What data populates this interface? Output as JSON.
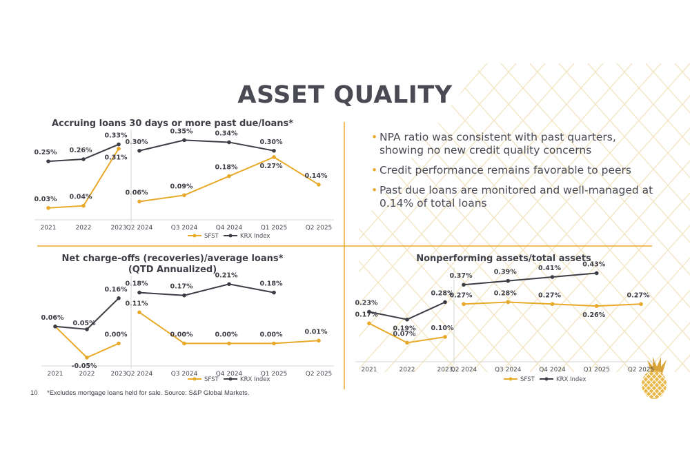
{
  "slide": {
    "title": "ASSET QUALITY",
    "page_number": "10",
    "footnote": "*Excludes mortgage loans held for sale. Source: S&P Global Markets."
  },
  "colors": {
    "sfst": "#e8a929",
    "krx": "#3d3d46",
    "divider": "#e8a929",
    "axis": "#d6d6d6"
  },
  "bullets": [
    "NPA ratio was consistent with past quarters, showing no new credit quality concerns",
    "Credit performance remains favorable to peers",
    "Past due loans are monitored and well-managed at 0.14% of total loans"
  ],
  "legend": {
    "sfst": "SFST",
    "krx": "KRX Index"
  },
  "chart_data": [
    {
      "type": "line",
      "title": "Accruing loans 30 days or more past due/loans*",
      "panels": [
        {
          "categories": [
            "2021",
            "2022",
            "2023"
          ],
          "series": [
            {
              "name": "SFST",
              "values": [
                0.03,
                0.04,
                0.31
              ],
              "labels": [
                "0.03%",
                "0.04%",
                "0.31%"
              ]
            },
            {
              "name": "KRX Index",
              "values": [
                0.25,
                0.26,
                0.33
              ],
              "labels": [
                "0.25%",
                "0.26%",
                "0.33%"
              ]
            }
          ]
        },
        {
          "categories": [
            "Q2 2024",
            "Q3 2024",
            "Q4 2024",
            "Q1 2025",
            "Q2 2025"
          ],
          "series": [
            {
              "name": "SFST",
              "values": [
                0.06,
                0.09,
                0.18,
                0.27,
                0.14
              ],
              "labels": [
                "0.06%",
                "0.09%",
                "0.18%",
                "0.27%",
                "0.14%"
              ]
            },
            {
              "name": "KRX Index",
              "values": [
                0.3,
                0.35,
                0.34,
                0.3
              ],
              "labels": [
                "0.30%",
                "0.35%",
                "0.34%",
                "0.30%"
              ]
            }
          ]
        }
      ],
      "legend": [
        "SFST",
        "KRX Index"
      ]
    },
    {
      "type": "line",
      "title": "Net charge-offs (recoveries)/average loans*",
      "subtitle": "(QTD Annualized)",
      "panels": [
        {
          "categories": [
            "2021",
            "2022",
            "2023"
          ],
          "series": [
            {
              "name": "SFST",
              "values": [
                0.06,
                -0.05,
                0.0
              ],
              "labels": [
                "",
                "-0.05%",
                "0.00%"
              ]
            },
            {
              "name": "KRX Index",
              "values": [
                0.06,
                0.05,
                0.16
              ],
              "labels": [
                "0.06%",
                "0.05%",
                "0.16%"
              ]
            }
          ]
        },
        {
          "categories": [
            "Q2 2024",
            "Q3 2024",
            "Q4 2024",
            "Q1 2025",
            "Q2 2025"
          ],
          "series": [
            {
              "name": "SFST",
              "values": [
                0.11,
                0.0,
                0.0,
                0.0,
                0.01
              ],
              "labels": [
                "0.11%",
                "0.00%",
                "0.00%",
                "0.00%",
                "0.01%"
              ]
            },
            {
              "name": "KRX Index",
              "values": [
                0.18,
                0.17,
                0.21,
                0.18
              ],
              "labels": [
                "0.18%",
                "0.17%",
                "0.21%",
                "0.18%"
              ]
            }
          ]
        }
      ],
      "legend": [
        "SFST",
        "KRX Index"
      ]
    },
    {
      "type": "line",
      "title": "Nonperforming assets/total assets",
      "panels": [
        {
          "categories": [
            "2021",
            "2022",
            "2023"
          ],
          "series": [
            {
              "name": "SFST",
              "values": [
                0.17,
                0.07,
                0.1
              ],
              "labels": [
                "0.17%",
                "0.07%",
                "0.10%"
              ]
            },
            {
              "name": "KRX Index",
              "values": [
                0.23,
                0.19,
                0.28
              ],
              "labels": [
                "0.23%",
                "0.19%",
                "0.28%"
              ]
            }
          ]
        },
        {
          "categories": [
            "Q2 2024",
            "Q3 2024",
            "Q4 2024",
            "Q1 2025",
            "Q2 2025"
          ],
          "series": [
            {
              "name": "SFST",
              "values": [
                0.27,
                0.28,
                0.27,
                0.26,
                0.27
              ],
              "labels": [
                "0.27%",
                "0.28%",
                "0.27%",
                "0.26%",
                "0.27%"
              ]
            },
            {
              "name": "KRX Index",
              "values": [
                0.37,
                0.39,
                0.41,
                0.43
              ],
              "labels": [
                "0.37%",
                "0.39%",
                "0.41%",
                "0.43%"
              ]
            }
          ]
        }
      ],
      "legend": [
        "SFST",
        "KRX Index"
      ]
    }
  ]
}
